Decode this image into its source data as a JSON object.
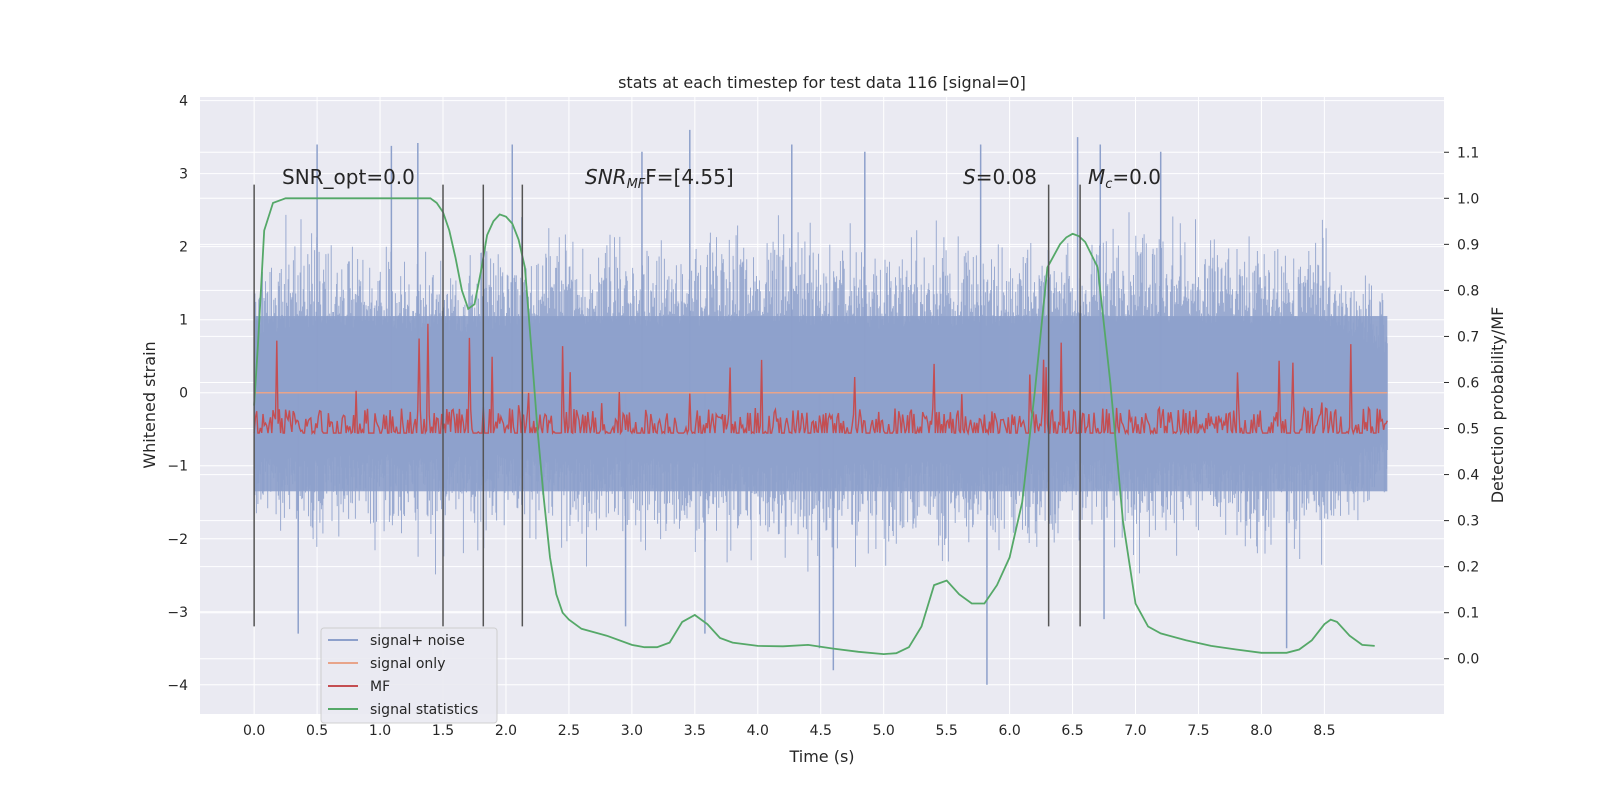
{
  "chart_data": {
    "type": "line",
    "title": "stats at each timestep for test data 116 [signal=0]",
    "xlabel": "Time (s)",
    "ylabel": "Whitened strain",
    "y2label": "Detection probability/MF",
    "xlim": [
      -0.43,
      9.45
    ],
    "ylim": [
      -4.4,
      4.05
    ],
    "y2lim": [
      -0.12,
      1.22
    ],
    "xticks": [
      "0.0",
      "0.5",
      "1.0",
      "1.5",
      "2.0",
      "2.5",
      "3.0",
      "3.5",
      "4.0",
      "4.5",
      "5.0",
      "5.5",
      "6.0",
      "6.5",
      "7.0",
      "7.5",
      "8.0",
      "8.5"
    ],
    "yticks": [
      "4",
      "3",
      "2",
      "1",
      "0",
      "−1",
      "−2",
      "−3",
      "−4"
    ],
    "y2ticks": [
      "1.1",
      "1.0",
      "0.9",
      "0.8",
      "0.7",
      "0.6",
      "0.5",
      "0.4",
      "0.3",
      "0.2",
      "0.1",
      "0.0"
    ],
    "annotations": {
      "snr_opt": "SNR_opt=0.0",
      "snr_mf_main": "SNR",
      "snr_mf_sub": "MF",
      "snr_mf_rest": "F=[4.55]",
      "s_main": "S",
      "s_rest": "=0.08",
      "mc_main": "M",
      "mc_sub": "c",
      "mc_rest": "=0.0"
    },
    "trigger_times": [
      0.0,
      1.5,
      1.82,
      2.13,
      6.31,
      6.56
    ],
    "noise_envelope": {
      "x": [
        0.0,
        0.2,
        0.5,
        1.0,
        1.5,
        2.0,
        2.5,
        3.0,
        3.5,
        4.0,
        4.5,
        5.0,
        5.5,
        6.0,
        6.5,
        7.0,
        7.5,
        8.0,
        8.5,
        9.0
      ],
      "upper": [
        2.2,
        2.4,
        2.6,
        2.5,
        2.3,
        2.5,
        2.7,
        2.6,
        2.6,
        2.8,
        2.6,
        2.5,
        2.6,
        2.6,
        2.7,
        2.8,
        2.7,
        2.6,
        2.7,
        1.5
      ],
      "lower": [
        -2.6,
        -2.5,
        -2.5,
        -2.4,
        -2.5,
        -2.4,
        -2.6,
        -2.5,
        -2.7,
        -2.8,
        -2.9,
        -2.6,
        -2.7,
        -2.8,
        -2.6,
        -2.7,
        -2.6,
        -2.7,
        -2.7,
        -1.9
      ]
    },
    "noise_spikes": {
      "x": [
        0.5,
        1.09,
        1.3,
        2.05,
        3.08,
        3.46,
        4.27,
        4.85,
        5.77,
        6.54,
        6.72,
        7.2,
        5.82,
        4.49,
        4.6,
        0.35,
        8.2,
        3.58,
        6.75,
        2.95
      ],
      "y": [
        3.4,
        3.38,
        3.42,
        3.4,
        3.3,
        3.6,
        3.4,
        3.3,
        3.4,
        3.5,
        3.4,
        3.3,
        -4.0,
        -3.5,
        -3.8,
        -3.3,
        -3.5,
        -3.3,
        -3.1,
        -3.2
      ]
    },
    "series": [
      {
        "name": "signal+ noise",
        "color": "#8da0cb"
      },
      {
        "name": "signal only",
        "color": "#e8a48a",
        "x": [
          0.0,
          9.0
        ],
        "y": [
          0.0,
          0.0
        ]
      },
      {
        "name": "MF",
        "color": "#c44e52",
        "axis": "right",
        "baseline": 0.5,
        "peak": 0.7
      },
      {
        "name": "signal statistics",
        "color": "#55a868",
        "axis": "right",
        "x": [
          0.0,
          0.03,
          0.08,
          0.15,
          0.25,
          0.4,
          0.6,
          0.8,
          1.0,
          1.2,
          1.3,
          1.4,
          1.45,
          1.5,
          1.55,
          1.6,
          1.65,
          1.7,
          1.75,
          1.8,
          1.85,
          1.9,
          1.95,
          2.0,
          2.05,
          2.1,
          2.15,
          2.2,
          2.25,
          2.3,
          2.35,
          2.4,
          2.45,
          2.5,
          2.6,
          2.8,
          3.0,
          3.1,
          3.2,
          3.3,
          3.4,
          3.5,
          3.6,
          3.7,
          3.8,
          4.0,
          4.2,
          4.4,
          4.6,
          4.8,
          5.0,
          5.1,
          5.2,
          5.3,
          5.4,
          5.5,
          5.6,
          5.7,
          5.8,
          5.9,
          6.0,
          6.1,
          6.2,
          6.3,
          6.4,
          6.45,
          6.5,
          6.55,
          6.6,
          6.7,
          6.8,
          6.9,
          7.0,
          7.1,
          7.2,
          7.4,
          7.6,
          7.8,
          8.0,
          8.2,
          8.3,
          8.4,
          8.5,
          8.55,
          8.6,
          8.7,
          8.8,
          8.9
        ],
        "y": [
          0.55,
          0.68,
          0.93,
          0.99,
          1.0,
          1.0,
          1.0,
          1.0,
          1.0,
          1.0,
          1.0,
          1.0,
          0.99,
          0.97,
          0.93,
          0.87,
          0.8,
          0.76,
          0.77,
          0.84,
          0.92,
          0.95,
          0.965,
          0.96,
          0.945,
          0.91,
          0.85,
          0.68,
          0.5,
          0.35,
          0.22,
          0.14,
          0.1,
          0.085,
          0.065,
          0.05,
          0.03,
          0.025,
          0.025,
          0.035,
          0.08,
          0.095,
          0.075,
          0.045,
          0.035,
          0.028,
          0.027,
          0.03,
          0.022,
          0.015,
          0.01,
          0.012,
          0.025,
          0.07,
          0.16,
          0.17,
          0.14,
          0.12,
          0.12,
          0.16,
          0.22,
          0.34,
          0.58,
          0.85,
          0.9,
          0.915,
          0.923,
          0.918,
          0.905,
          0.85,
          0.6,
          0.3,
          0.12,
          0.07,
          0.055,
          0.04,
          0.028,
          0.02,
          0.013,
          0.013,
          0.02,
          0.04,
          0.075,
          0.085,
          0.08,
          0.05,
          0.03,
          0.028
        ]
      }
    ],
    "legend": [
      "signal+ noise",
      "signal only",
      "MF",
      "signal statistics"
    ],
    "legend_position": "lower-left",
    "grid": true
  }
}
